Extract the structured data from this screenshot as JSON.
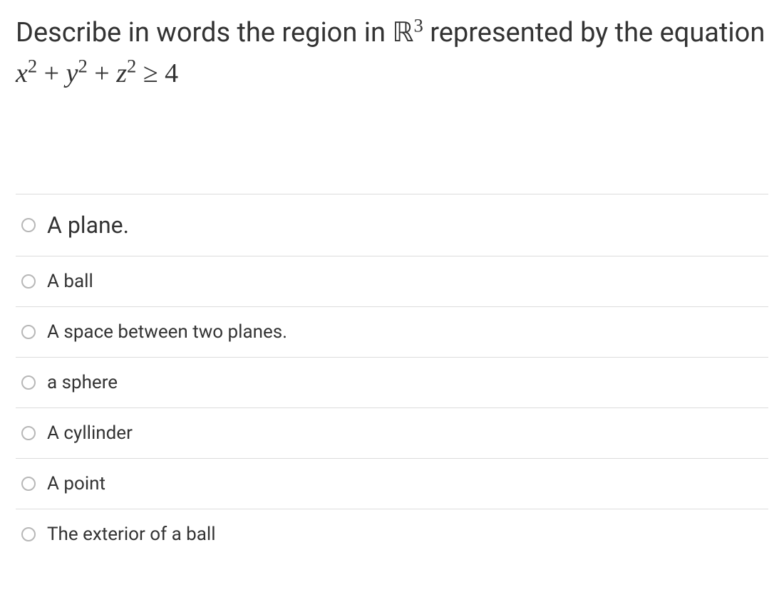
{
  "question": {
    "prefix": "Describe in words the region in ",
    "math_set": "ℝ",
    "math_exp1": "3",
    "mid": " represented by the  equation ",
    "eq_x": "x",
    "eq_sq1": "2",
    "eq_plus1": " + ",
    "eq_y": "y",
    "eq_sq2": "2",
    "eq_plus2": " + ",
    "eq_z": "z",
    "eq_sq3": "2",
    "eq_ge": " ≥ ",
    "eq_rhs": "4"
  },
  "options": [
    {
      "label": "A plane."
    },
    {
      "label": "A ball"
    },
    {
      "label": "A space between two planes."
    },
    {
      "label": "a sphere"
    },
    {
      "label": "A cyllinder"
    },
    {
      "label": "A point"
    },
    {
      "label": "The exterior of a ball"
    }
  ],
  "style": {
    "text_color": "#333333",
    "border_color": "#dcdcdc",
    "radio_border": "#b7b7b7",
    "question_fontsize": 38,
    "option_fontsize": 26,
    "first_option_fontsize": 32
  }
}
